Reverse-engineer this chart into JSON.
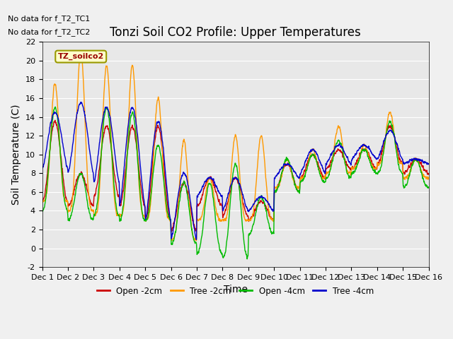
{
  "title": "Tonzi Soil CO2 Profile: Upper Temperatures",
  "xlabel": "Time",
  "ylabel": "Soil Temperature (C)",
  "ylim": [
    -2,
    22
  ],
  "xlim": [
    0,
    15
  ],
  "xtick_labels": [
    "Dec 1",
    "Dec 2",
    "Dec 3",
    "Dec 4",
    "Dec 5",
    "Dec 6",
    "Dec 7",
    "Dec 8",
    "Dec 9",
    "Dec 10",
    "Dec 11",
    "Dec 12",
    "Dec 13",
    "Dec 14",
    "Dec 15",
    "Dec 16"
  ],
  "ytick_values": [
    -2,
    0,
    2,
    4,
    6,
    8,
    10,
    12,
    14,
    16,
    18,
    20,
    22
  ],
  "no_data_text1": "No data for f_T2_TC1",
  "no_data_text2": "No data for f_T2_TC2",
  "inner_legend_text": "TZ_soilco2",
  "legend_items": [
    {
      "label": "Open -2cm",
      "color": "#cc0000"
    },
    {
      "label": "Tree -2cm",
      "color": "#ff9900"
    },
    {
      "label": "Open -4cm",
      "color": "#00bb00"
    },
    {
      "label": "Tree -4cm",
      "color": "#0000cc"
    }
  ],
  "line_width": 1.0,
  "title_fontsize": 12,
  "axis_label_fontsize": 10,
  "tick_fontsize": 8,
  "fig_bg": "#f0f0f0",
  "plot_bg": "#e8e8e8",
  "grid_color": "#ffffff",
  "figsize": [
    6.4,
    4.8
  ],
  "dpi": 100
}
